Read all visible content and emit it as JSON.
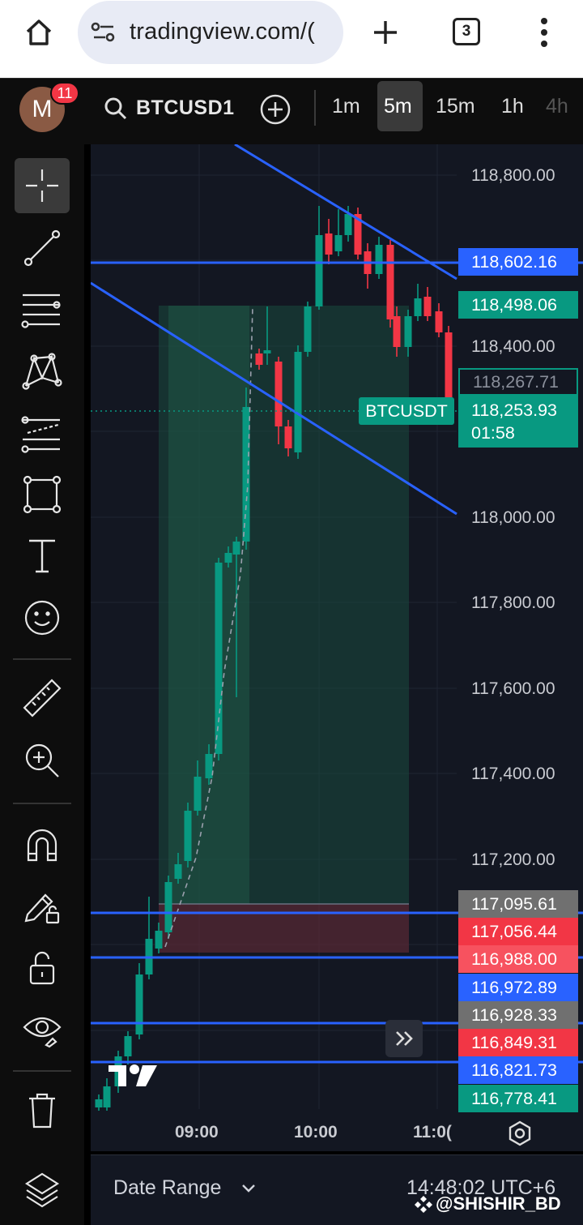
{
  "browser": {
    "url": "tradingview.com/(",
    "tab_count": "3"
  },
  "topbar": {
    "avatar_letter": "M",
    "notifications": "11",
    "symbol": "BTCUSD1",
    "timeframes": [
      "1m",
      "5m",
      "15m",
      "1h",
      "4h"
    ],
    "active_timeframe": "5m"
  },
  "toolbar": {
    "tools": [
      "crosshair",
      "trend-line",
      "fib-levels",
      "patterns",
      "forecasting",
      "shapes",
      "text",
      "emoji",
      "ruler",
      "zoom",
      "magnet",
      "lock-drawing",
      "lock",
      "visibility",
      "trash",
      "layers"
    ],
    "active_tool": "crosshair"
  },
  "chart": {
    "price_axis": [
      "118,800.00",
      "118,400.00",
      "118,000.00",
      "117,800.00",
      "117,600.00",
      "117,400.00",
      "117,200.00"
    ],
    "price_tags": [
      {
        "text": "118,602.16",
        "color": "#2962ff"
      },
      {
        "text": "118,498.06",
        "color": "#089981"
      },
      {
        "text": "118,267.71",
        "color": "#131722",
        "outline": "#089981"
      },
      {
        "text": "117,095.61",
        "color": "#707070"
      },
      {
        "text": "117,056.44",
        "color": "#f23645"
      },
      {
        "text": "116,988.00",
        "color": "#f7525f"
      },
      {
        "text": "116,972.89",
        "color": "#2962ff"
      },
      {
        "text": "116,928.33",
        "color": "#707070"
      },
      {
        "text": "116,849.31",
        "color": "#f23645"
      },
      {
        "text": "116,821.73",
        "color": "#2962ff"
      },
      {
        "text": "116,778.41",
        "color": "#089981"
      }
    ],
    "current_price": "118,253.93",
    "countdown": "01:58",
    "symbol_label": "BTCUSDT",
    "time_axis": [
      "09:00",
      "10:00",
      "11:0("
    ]
  },
  "bottom": {
    "date_range": "Date Range",
    "clock": "14:48:02 UTC+6",
    "watermark": "@SHISHIR_BD"
  },
  "colors": {
    "up": "#089981",
    "down": "#f23645",
    "line": "#2962ff",
    "bg": "#131722"
  }
}
